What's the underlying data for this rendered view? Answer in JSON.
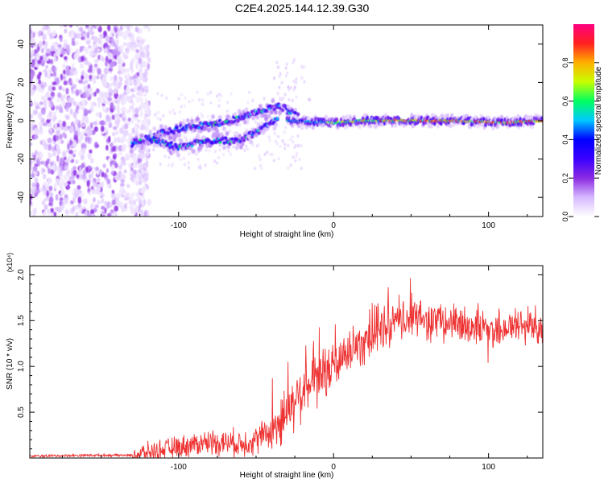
{
  "title": "C2E4.2025.144.12.39.G30",
  "chart_data": [
    {
      "type": "heatmap",
      "xlabel": "Height of straight line (km)",
      "ylabel": "Frequency (Hz)",
      "xlim": [
        -196,
        135
      ],
      "ylim": [
        -50,
        50
      ],
      "xticks": [
        -100,
        0,
        100
      ],
      "yticks": [
        -40,
        -20,
        0,
        20,
        40
      ],
      "colorbar": {
        "label": "Normalized spectral amplitude",
        "range": [
          0,
          1
        ],
        "ticks": [
          "0.0",
          "0.2",
          "0.4",
          "0.6",
          "0.8"
        ],
        "tick_values": [
          0.0,
          0.2,
          0.4,
          0.6,
          0.8
        ],
        "colors": [
          "#ffffff",
          "#d6b8ff",
          "#8a2be2",
          "#3a00ff",
          "#0000ff",
          "#00c8ff",
          "#00ff60",
          "#c8ff00",
          "#ffb000",
          "#ff2020",
          "#ff0080"
        ]
      },
      "features": [
        {
          "name": "noise",
          "x_range": [
            -196,
            -125
          ],
          "freq_range": [
            -50,
            50
          ],
          "amplitude": 0.12
        },
        {
          "name": "rising-signal",
          "x": [
            -130,
            -110,
            -90,
            -70,
            -50,
            -35,
            -22
          ],
          "freq": [
            -12,
            -6,
            -3,
            -1,
            4,
            8,
            2
          ],
          "amplitude": 0.3
        },
        {
          "name": "second-branch",
          "x": [
            -120,
            -100,
            -80,
            -62,
            -48,
            -36
          ],
          "freq": [
            -9,
            -14,
            -10,
            -11,
            -5,
            1
          ],
          "amplitude": 0.25
        },
        {
          "name": "carrier",
          "x": [
            -30,
            0,
            20,
            50,
            80,
            110,
            135
          ],
          "freq": [
            0,
            -1,
            0,
            0,
            0,
            -1,
            0
          ],
          "amplitude": 0.85
        }
      ]
    },
    {
      "type": "line",
      "xlabel": "Height of straight line (km)",
      "ylabel": "SNR (10 * v/v)",
      "y_multiplier": "(x10⁴)",
      "xlim": [
        -196,
        135
      ],
      "ylim": [
        0,
        2.1
      ],
      "xticks": [
        -100,
        0,
        100
      ],
      "yticks": [
        0.5,
        1.0,
        1.5,
        2.0
      ],
      "series": [
        {
          "name": "SNR",
          "color": "#ee3333",
          "x": [
            -196,
            -160,
            -130,
            -120,
            -100,
            -80,
            -60,
            -50,
            -40,
            -30,
            -20,
            -10,
            0,
            10,
            20,
            30,
            40,
            50,
            60,
            70,
            80,
            90,
            100,
            110,
            120,
            135
          ],
          "y": [
            0.02,
            0.03,
            0.03,
            0.06,
            0.12,
            0.18,
            0.16,
            0.2,
            0.3,
            0.5,
            0.75,
            0.85,
            1.0,
            1.15,
            1.3,
            1.4,
            1.45,
            1.55,
            1.5,
            1.5,
            1.45,
            1.45,
            1.4,
            1.42,
            1.45,
            1.45
          ]
        }
      ]
    }
  ]
}
